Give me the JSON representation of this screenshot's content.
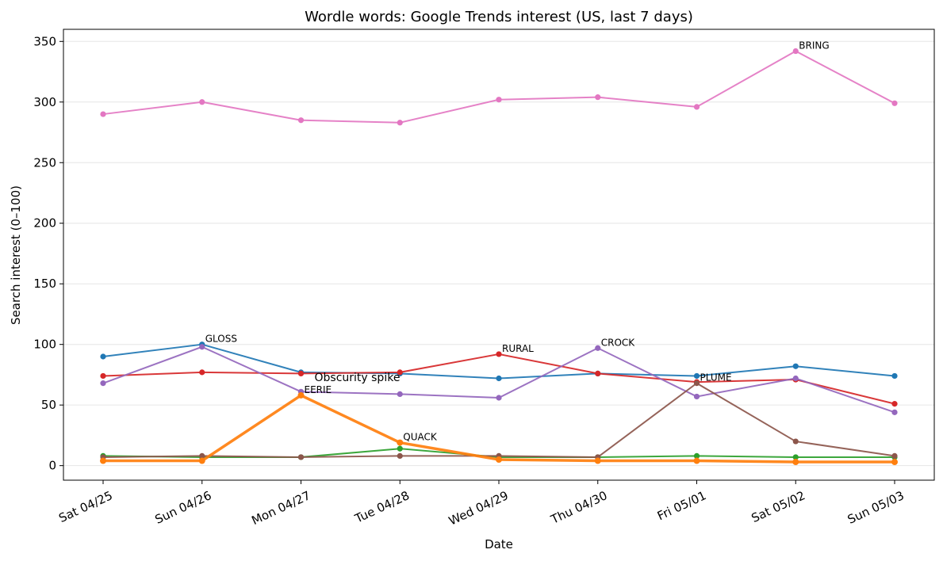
{
  "chart_data": {
    "type": "line",
    "title": "Wordle words: Google Trends interest (US, last 7 days)",
    "xlabel": "Date",
    "ylabel": "Search interest (0–100)",
    "categories": [
      "Sat 04/25",
      "Sun 04/26",
      "Mon 04/27",
      "Tue 04/28",
      "Wed 04/29",
      "Thu 04/30",
      "Fri 05/01",
      "Sat 05/02",
      "Sun 05/03"
    ],
    "ylim": [
      -12,
      360
    ],
    "yticks": [
      0,
      50,
      100,
      150,
      200,
      250,
      300,
      350
    ],
    "grid": "horizontal",
    "series": [
      {
        "color": "#e377c2",
        "width": 2,
        "values": [
          290,
          300,
          285,
          283,
          302,
          304,
          296,
          342,
          299
        ]
      },
      {
        "color": "#1f77b4",
        "width": 2,
        "values": [
          90,
          100,
          77,
          76,
          72,
          76,
          74,
          82,
          74
        ]
      },
      {
        "color": "#d62728",
        "width": 2,
        "values": [
          74,
          77,
          76,
          77,
          92,
          76,
          69,
          71,
          51
        ]
      },
      {
        "color": "#9467bd",
        "width": 2,
        "values": [
          68,
          98,
          61,
          59,
          56,
          97,
          57,
          72,
          44
        ]
      },
      {
        "color": "#2ca02c",
        "width": 2,
        "values": [
          8,
          7,
          7,
          14,
          7,
          7,
          8,
          7,
          7
        ]
      },
      {
        "color": "#8c564b",
        "width": 2,
        "values": [
          7,
          8,
          7,
          8,
          8,
          7,
          68,
          20,
          8
        ]
      },
      {
        "color": "#ff7f0e",
        "width": 3.5,
        "values": [
          4,
          4,
          58,
          19,
          5,
          4,
          4,
          3,
          3
        ]
      }
    ],
    "annotations": [
      {
        "text": "BRING",
        "x": "Sat 05/02",
        "y": 342,
        "size": "small"
      },
      {
        "text": "GLOSS",
        "x": "Sun 04/26",
        "y": 100,
        "size": "small"
      },
      {
        "text": "RURAL",
        "x": "Wed 04/29",
        "y": 92,
        "size": "small"
      },
      {
        "text": "CROCK",
        "x": "Thu 04/30",
        "y": 97,
        "size": "small"
      },
      {
        "text": "PLUME",
        "x": "Fri 05/01",
        "y": 68,
        "size": "small"
      },
      {
        "text": "EERIE",
        "x": "Mon 04/27",
        "y": 58,
        "size": "small"
      },
      {
        "text": "QUACK",
        "x": "Tue 04/28",
        "y": 19,
        "size": "small"
      },
      {
        "text": "Obscurity spike",
        "x": "Mon 04/27",
        "y": 58,
        "size": "large"
      }
    ]
  }
}
